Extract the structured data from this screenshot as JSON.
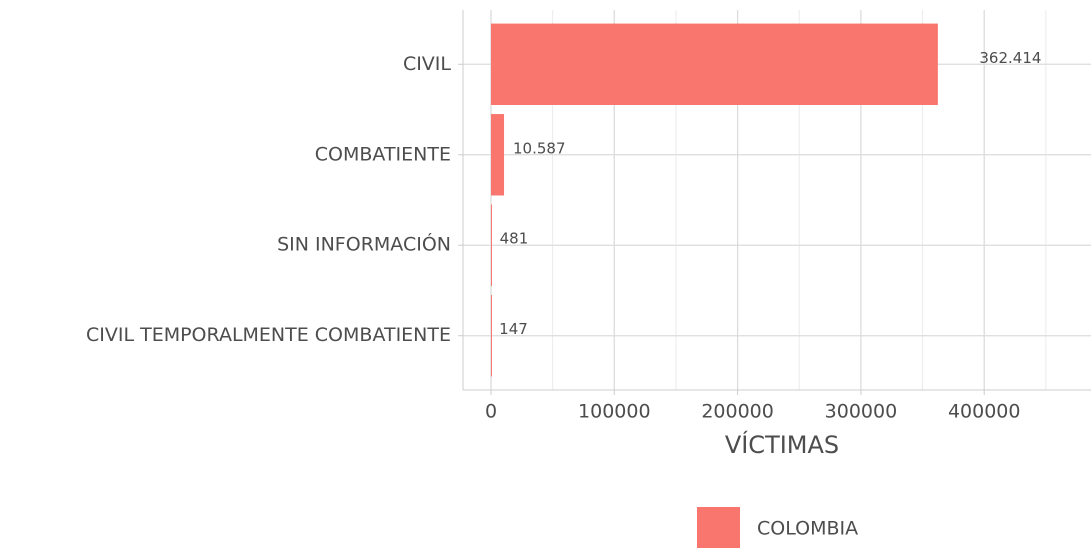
{
  "chart_data": {
    "type": "bar",
    "orientation": "horizontal",
    "categories": [
      "CIVIL",
      "COMBATIENTE",
      "SIN INFORMACIÓN",
      "CIVIL TEMPORALMENTE COMBATIENTE"
    ],
    "series": [
      {
        "name": "COLOMBIA",
        "color": "#f8766d",
        "values": [
          362414,
          10587,
          481,
          147
        ],
        "value_labels": [
          "362.414",
          "10.587",
          "481",
          "147"
        ]
      }
    ],
    "x_label": "VÍCTIMAS",
    "xlim": [
      -22700,
      486600
    ],
    "xticks": [
      0,
      100000,
      200000,
      300000,
      400000
    ],
    "minor_xticks": [
      50000,
      150000,
      250000,
      350000,
      450000
    ],
    "grid": true,
    "legend": "bottom"
  }
}
